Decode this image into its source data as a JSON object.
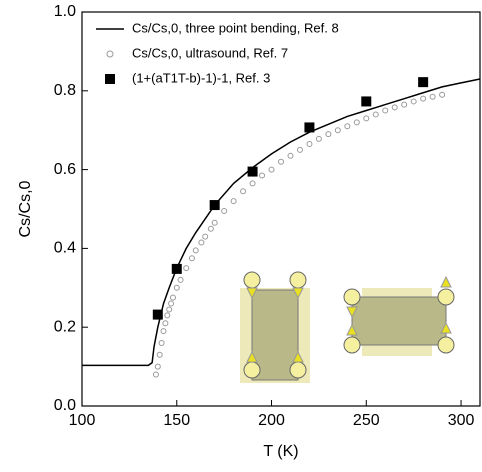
{
  "chart_data": {
    "type": "line",
    "x_label": "T (K)",
    "y_label": "Cs/Cs,0",
    "xlim": [
      100,
      310
    ],
    "ylim": [
      0,
      1
    ],
    "xticks": [
      100,
      150,
      200,
      250,
      300
    ],
    "yticks": [
      {
        "value": 0,
        "label": "0.0"
      },
      0.2,
      0.4,
      0.6,
      0.8,
      {
        "value": 1,
        "label": "1.0"
      }
    ],
    "series": [
      {
        "name": "Cs/Cs,0, three point bending, Ref. 8",
        "style": "line",
        "color": "#000000",
        "x": [
          100,
          135,
          137,
          138,
          140,
          143,
          146,
          150,
          155,
          160,
          170,
          180,
          190,
          200,
          210,
          220,
          230,
          240,
          250,
          260,
          270,
          280,
          290,
          300,
          310
        ],
        "values": [
          0.103,
          0.103,
          0.11,
          0.15,
          0.2,
          0.26,
          0.3,
          0.35,
          0.4,
          0.44,
          0.51,
          0.565,
          0.605,
          0.64,
          0.67,
          0.695,
          0.715,
          0.735,
          0.75,
          0.765,
          0.78,
          0.795,
          0.81,
          0.82,
          0.83
        ]
      },
      {
        "name": "Cs/Cs,0, ultrasound, Ref. 7",
        "style": "circle",
        "color": "#999999",
        "x": [
          139,
          140,
          141,
          142,
          143,
          144,
          145,
          146,
          147,
          148,
          150,
          152,
          155,
          158,
          160,
          163,
          165,
          168,
          170,
          175,
          180,
          185,
          190,
          195,
          200,
          205,
          210,
          215,
          220,
          225,
          230,
          235,
          240,
          245,
          250,
          255,
          260,
          265,
          270,
          275,
          280,
          285,
          290
        ],
        "values": [
          0.08,
          0.1,
          0.13,
          0.16,
          0.19,
          0.21,
          0.23,
          0.245,
          0.26,
          0.275,
          0.3,
          0.32,
          0.35,
          0.375,
          0.395,
          0.415,
          0.43,
          0.45,
          0.465,
          0.495,
          0.52,
          0.545,
          0.565,
          0.585,
          0.6,
          0.62,
          0.635,
          0.65,
          0.665,
          0.678,
          0.69,
          0.7,
          0.71,
          0.72,
          0.73,
          0.74,
          0.75,
          0.758,
          0.765,
          0.773,
          0.78,
          0.785,
          0.79
        ]
      },
      {
        "name": "(1+(aT1T-b)-1)-1,  Ref. 3",
        "style": "square",
        "color": "#000000",
        "x": [
          140,
          150,
          170,
          190,
          220,
          250,
          280
        ],
        "values": [
          0.232,
          0.348,
          0.51,
          0.595,
          0.707,
          0.773,
          0.822
        ]
      }
    ]
  }
}
